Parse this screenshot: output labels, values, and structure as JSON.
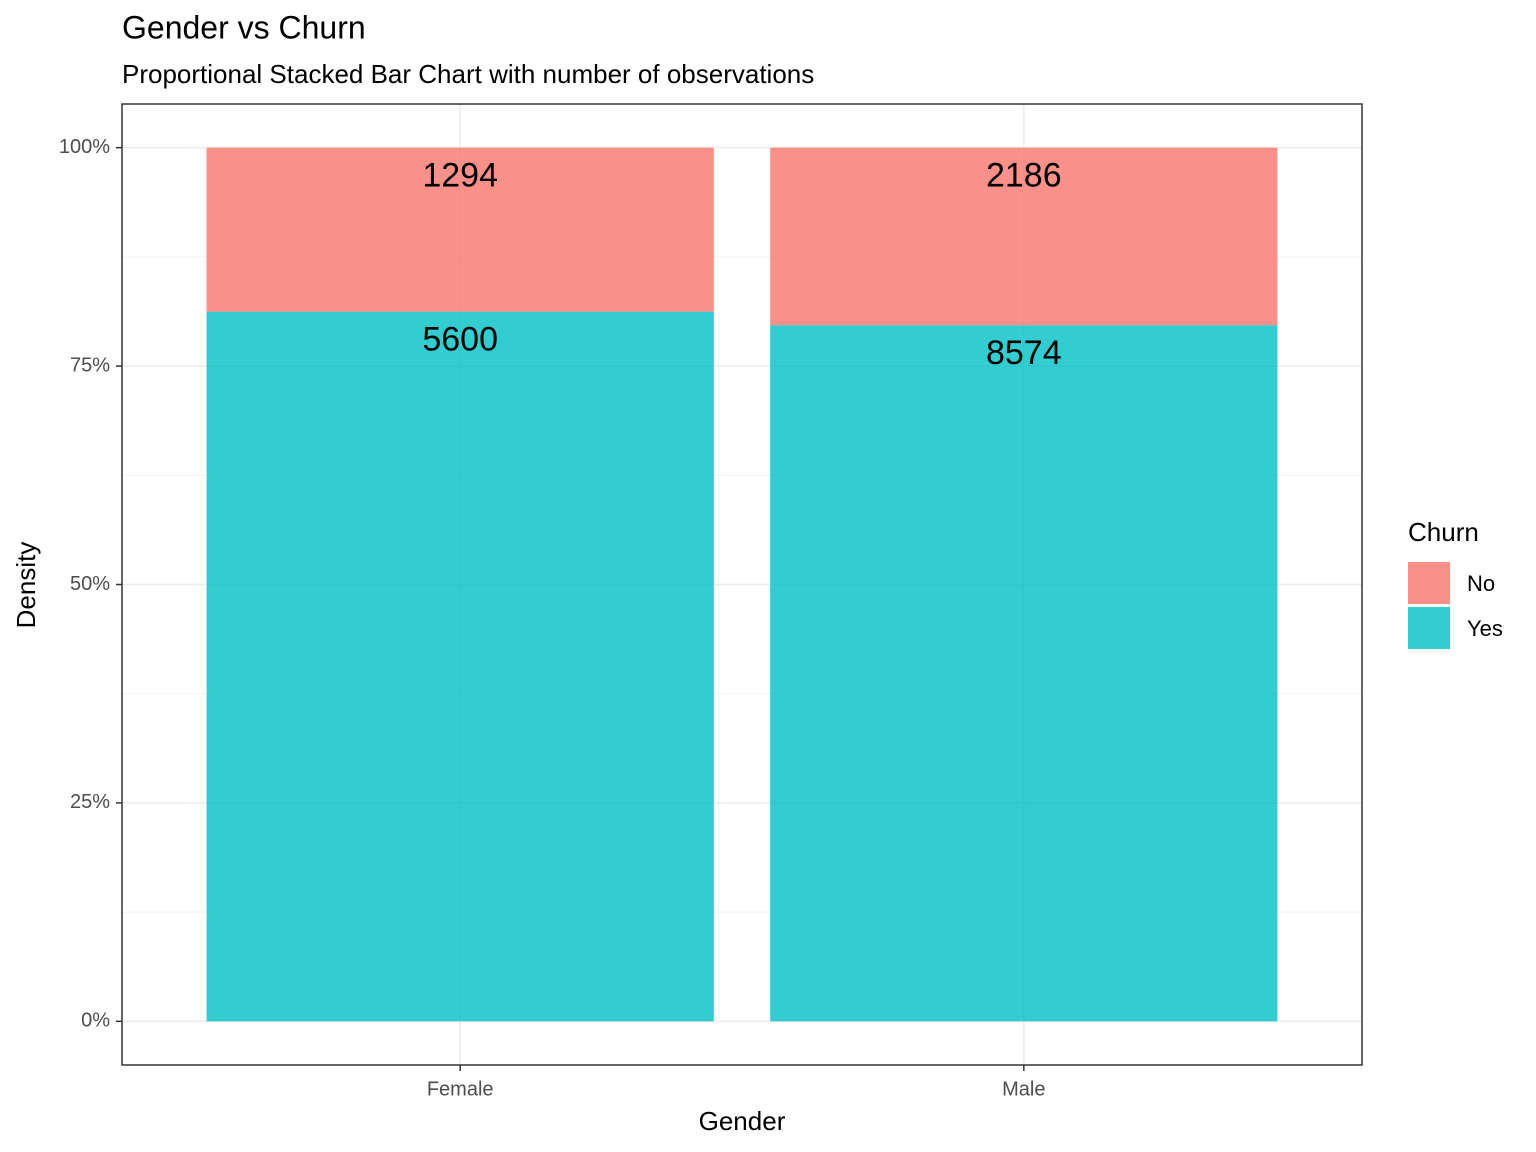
{
  "chart_data": {
    "type": "bar",
    "stacking": "percent",
    "title": "Gender vs Churn",
    "subtitle": "Proportional Stacked Bar Chart with number of observations",
    "x_label": "Gender",
    "y_label": "Density",
    "categories": [
      "Female",
      "Male"
    ],
    "series": [
      {
        "name": "No",
        "color": "#F8766D",
        "values": [
          1294,
          2186
        ]
      },
      {
        "name": "Yes",
        "color": "#00BFC4",
        "values": [
          5600,
          8574
        ]
      }
    ],
    "legend_title": "Churn",
    "legend": "right",
    "ylim": [
      -5,
      105
    ],
    "yticks": [
      {
        "value": 0,
        "label": "0%"
      },
      {
        "value": 25,
        "label": "25%"
      },
      {
        "value": 50,
        "label": "50%"
      },
      {
        "value": 75,
        "label": "75%"
      },
      {
        "value": 100,
        "label": "100%"
      }
    ],
    "grid": true
  }
}
